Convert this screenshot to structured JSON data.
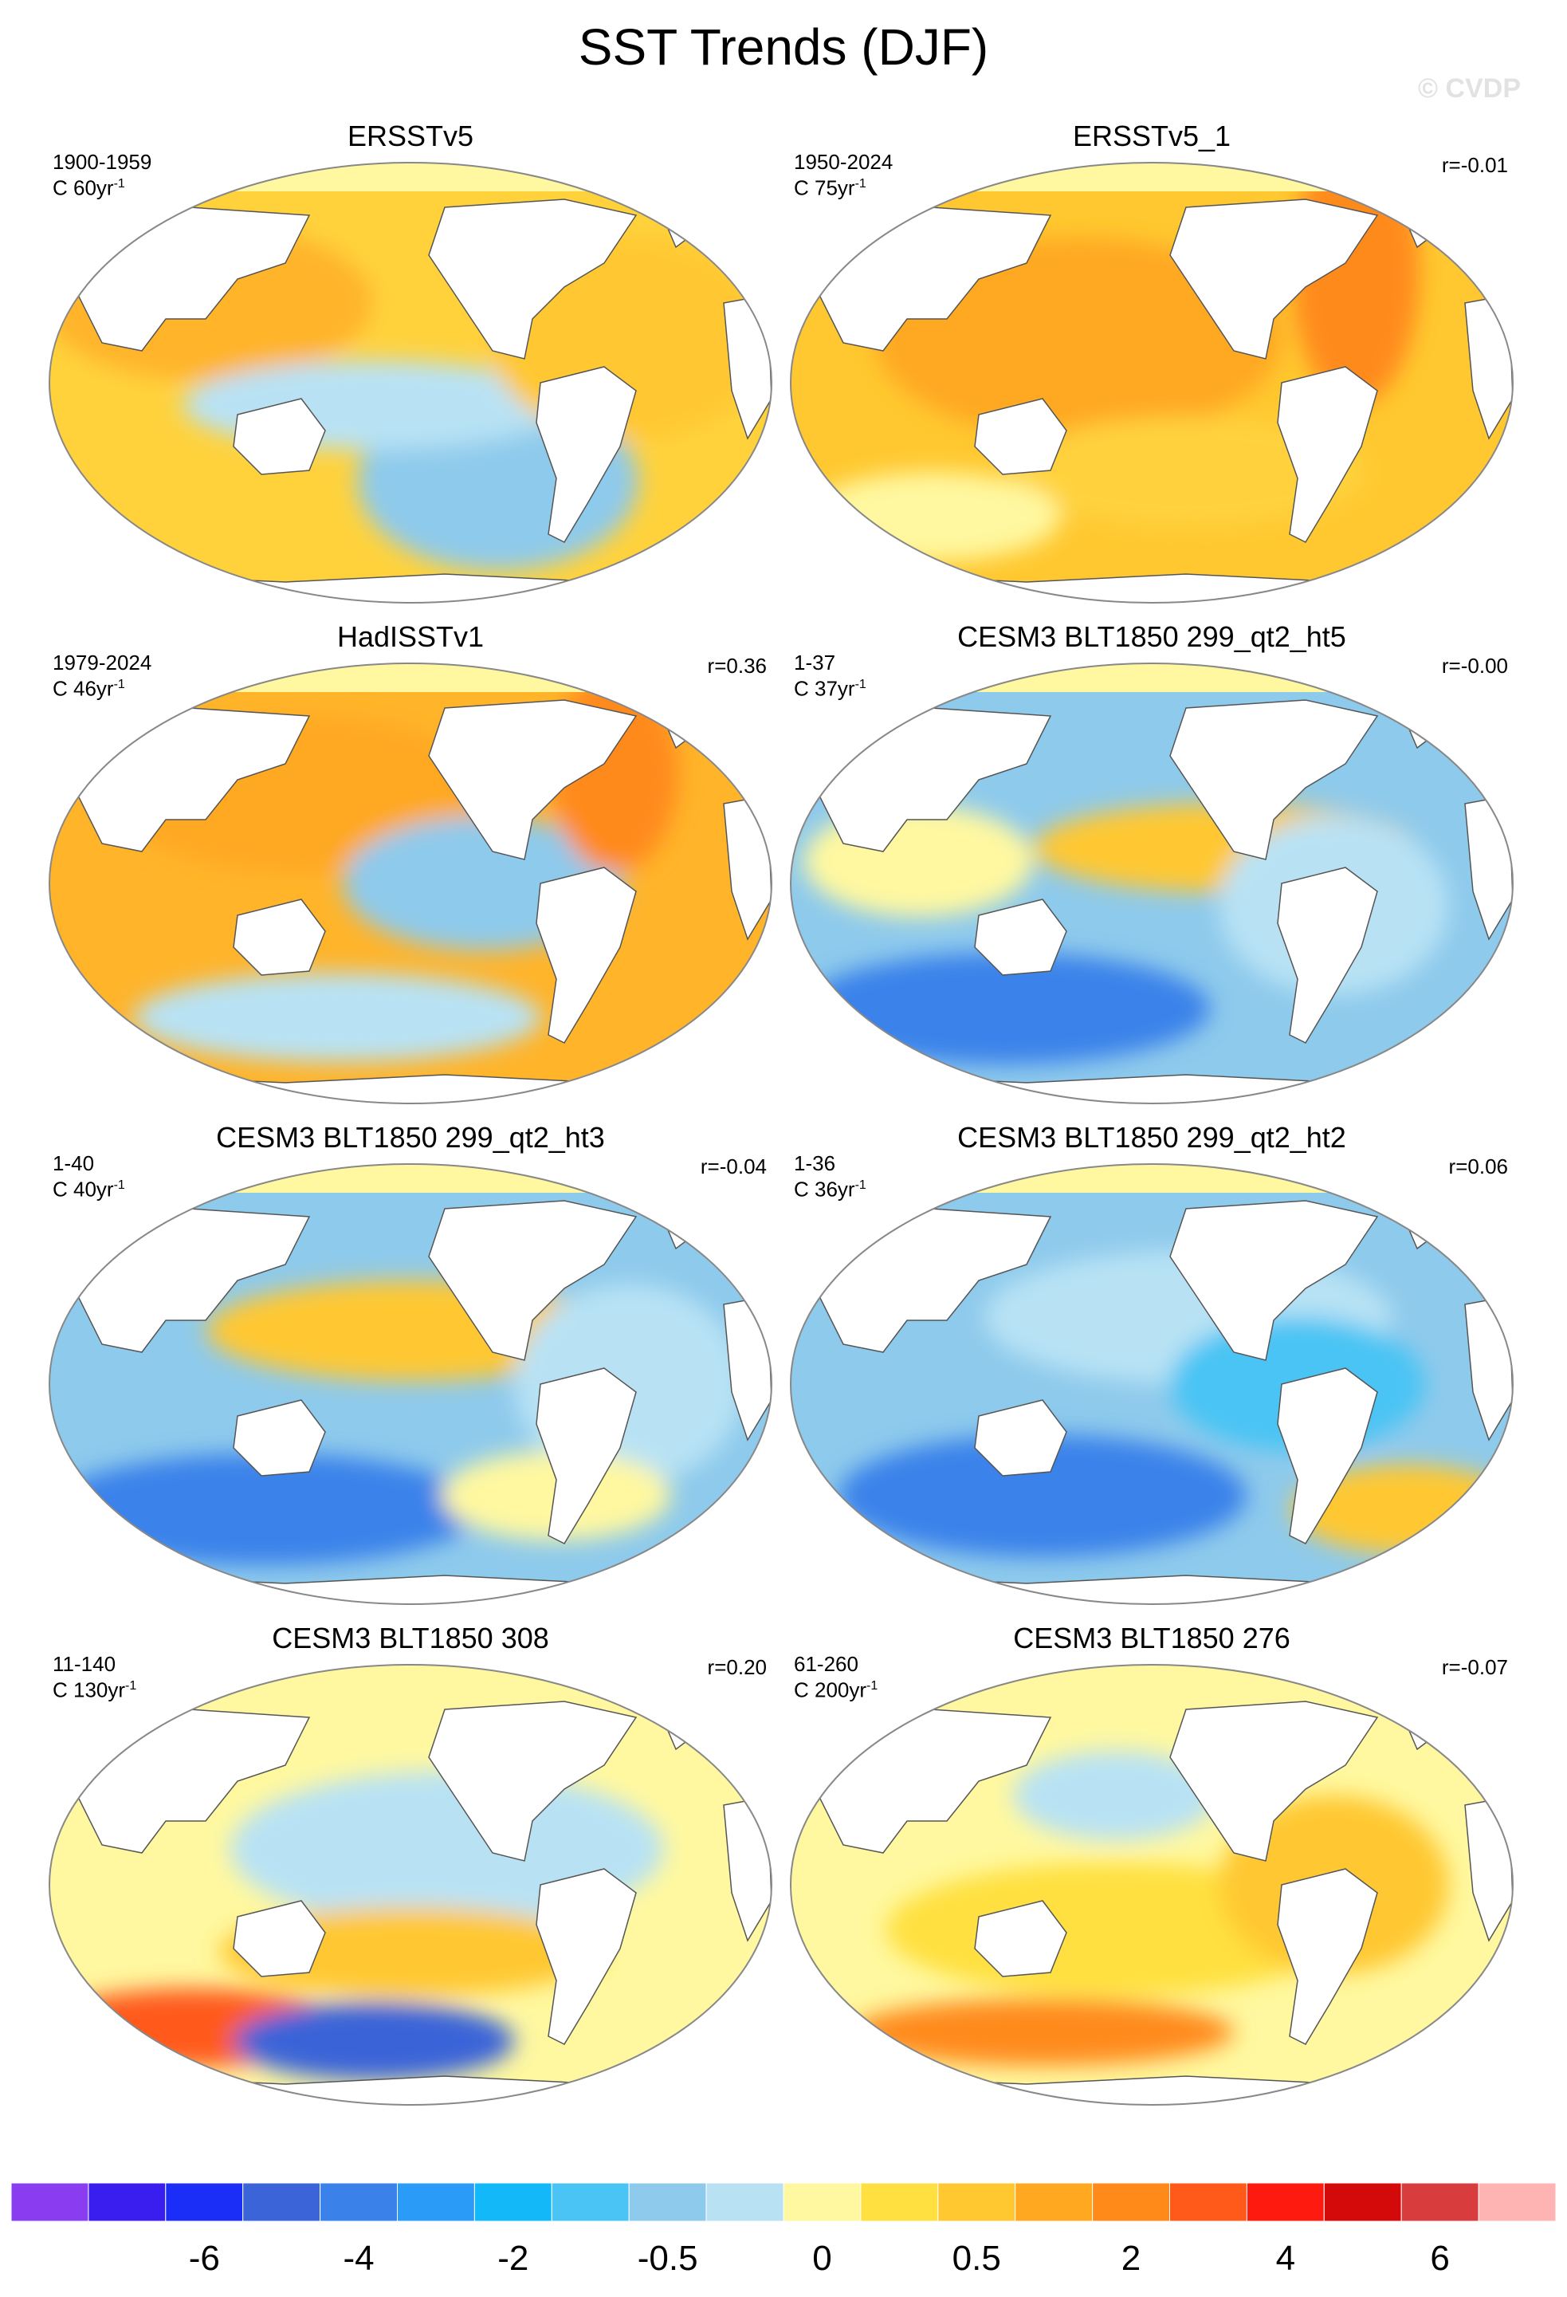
{
  "title": "SST Trends (DJF)",
  "watermark": "© CVDP",
  "panels": [
    {
      "title": "ERSSTv5",
      "period": "1900-1959",
      "units_prefix": "C 60yr",
      "units_exp": "-1",
      "corr": ""
    },
    {
      "title": "ERSSTv5_1",
      "period": "1950-2024",
      "units_prefix": "C 75yr",
      "units_exp": "-1",
      "corr": "r=-0.01"
    },
    {
      "title": "HadISSTv1",
      "period": "1979-2024",
      "units_prefix": "C 46yr",
      "units_exp": "-1",
      "corr": "r=0.36"
    },
    {
      "title": "CESM3 BLT1850 299_qt2_ht5",
      "period": "1-37",
      "units_prefix": "C 37yr",
      "units_exp": "-1",
      "corr": "r=-0.00"
    },
    {
      "title": "CESM3 BLT1850 299_qt2_ht3",
      "period": "1-40",
      "units_prefix": "C 40yr",
      "units_exp": "-1",
      "corr": "r=-0.04"
    },
    {
      "title": "CESM3 BLT1850 299_qt2_ht2",
      "period": "1-36",
      "units_prefix": "C 36yr",
      "units_exp": "-1",
      "corr": "r=0.06"
    },
    {
      "title": "CESM3 BLT1850 308",
      "period": "11-140",
      "units_prefix": "C 130yr",
      "units_exp": "-1",
      "corr": "r=0.20"
    },
    {
      "title": "CESM3 BLT1850 276",
      "period": "61-260",
      "units_prefix": "C 200yr",
      "units_exp": "-1",
      "corr": "r=-0.07"
    }
  ],
  "colorbar": {
    "colors": [
      "#8a3cf0",
      "#3a1ef0",
      "#1a2ef8",
      "#3a64d8",
      "#3a82ea",
      "#2a9cf8",
      "#12b8f8",
      "#4ac4f4",
      "#8ecaec",
      "#b8e2f4",
      "#fff8a0",
      "#ffe040",
      "#ffc830",
      "#ffa820",
      "#ff8a1a",
      "#ff5a1a",
      "#ff1a10",
      "#d40a0a",
      "#d83c3c",
      "#ffb4b4"
    ],
    "labels": [
      "-6",
      "-4",
      "-2",
      "-0.5",
      "0",
      "0.5",
      "2",
      "4",
      "6"
    ]
  }
}
